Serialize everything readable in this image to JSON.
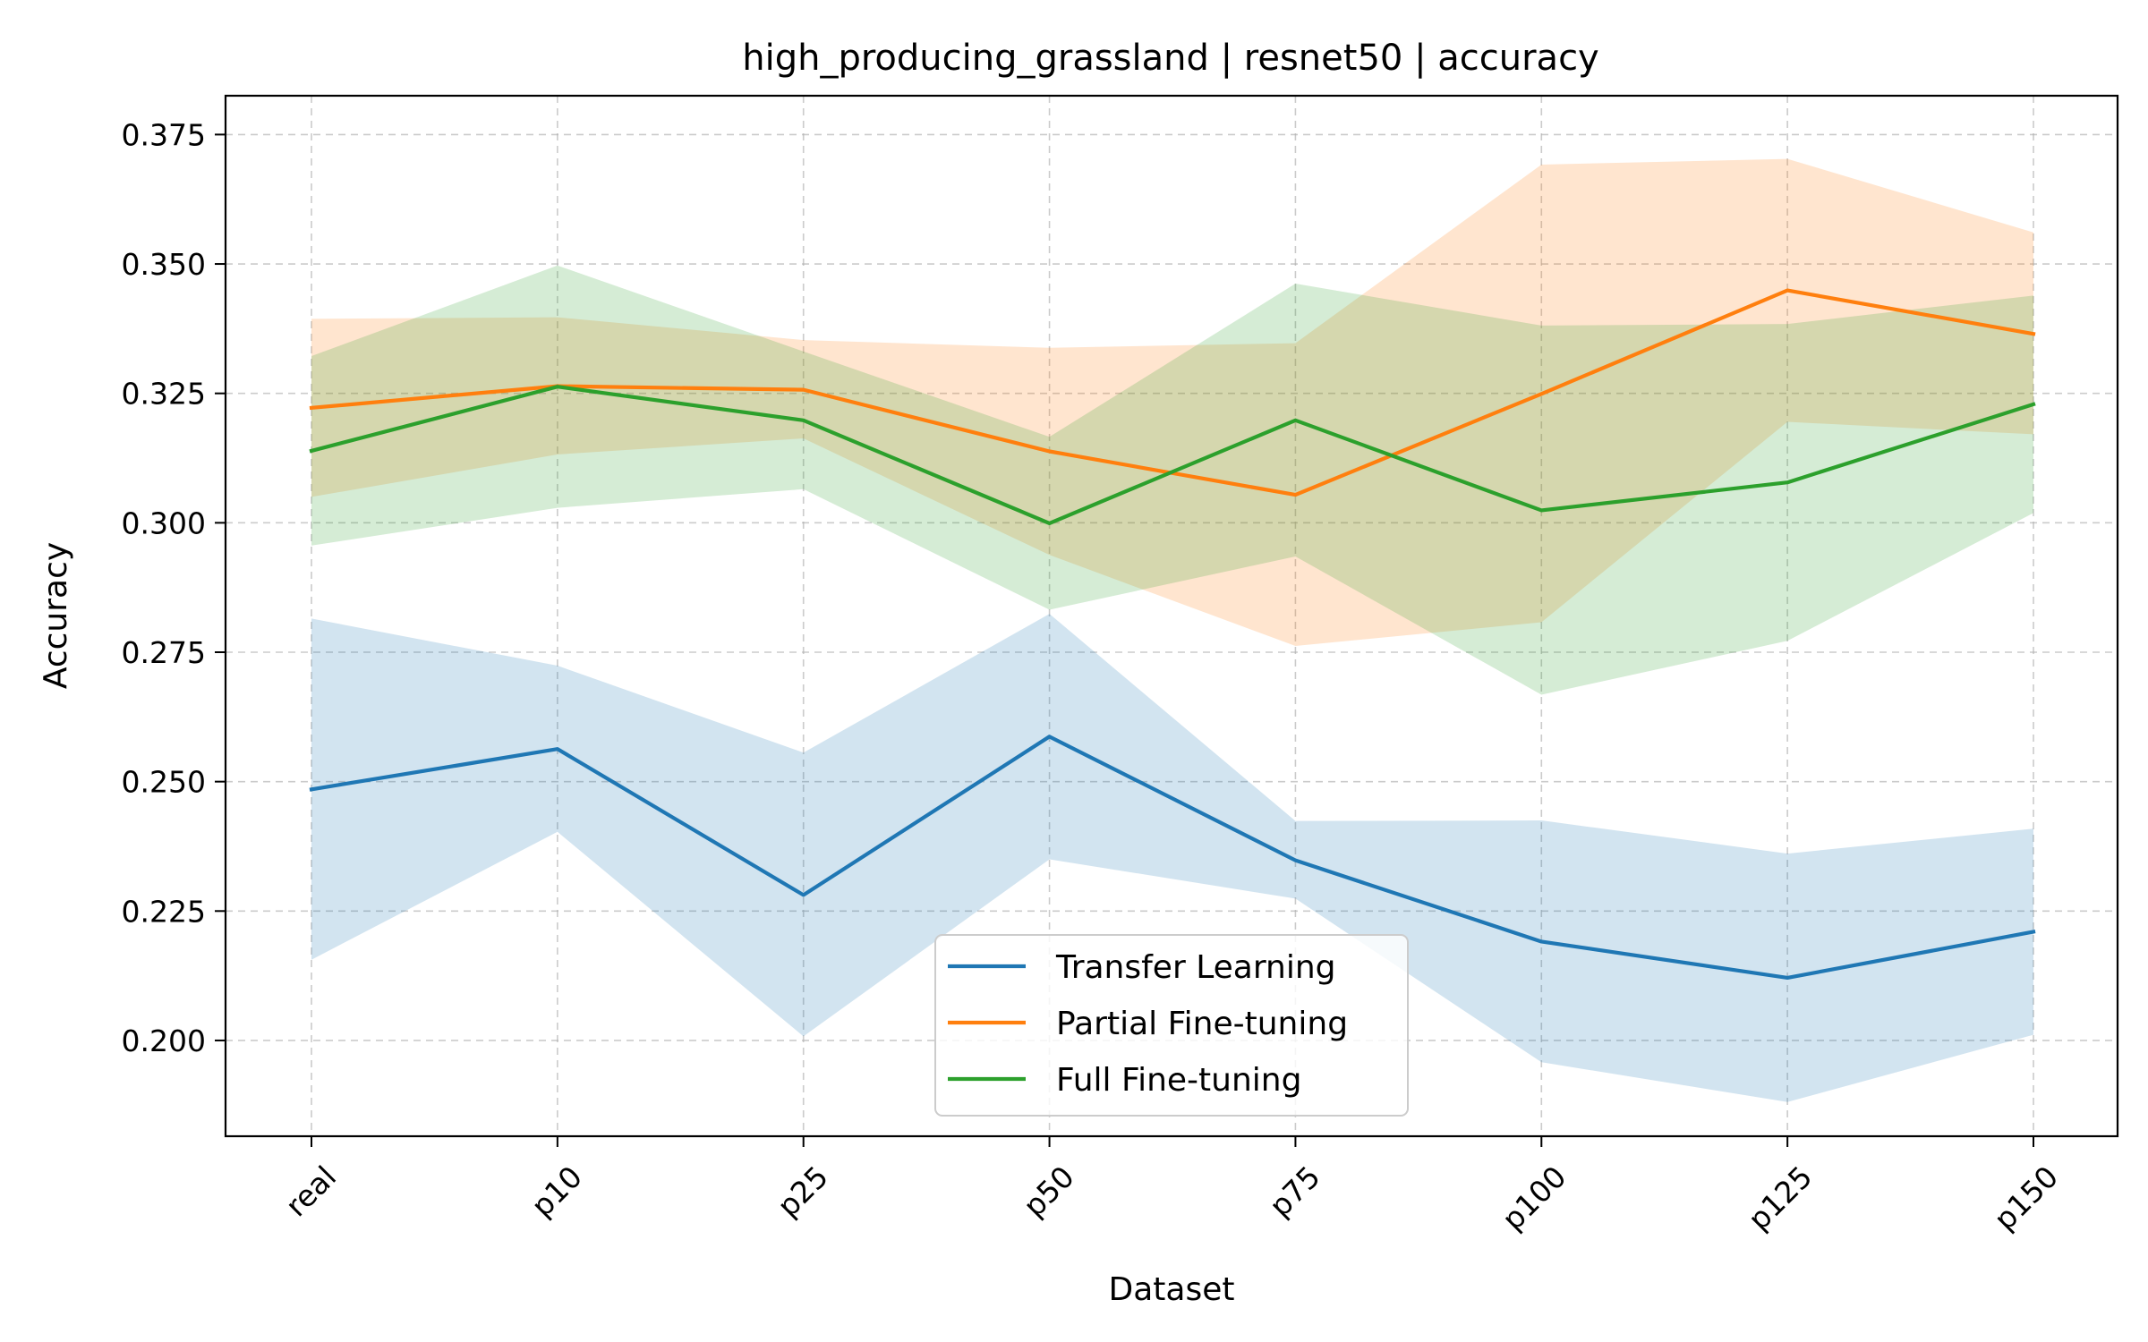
{
  "chart_data": {
    "type": "line",
    "title": "high_producing_grassland | resnet50 | accuracy",
    "xlabel": "Dataset",
    "ylabel": "Accuracy",
    "categories": [
      "real",
      "p10",
      "p25",
      "p50",
      "p75",
      "p100",
      "p125",
      "p150"
    ],
    "ylim": [
      0.1815,
      0.3825
    ],
    "yticks": [
      0.2,
      0.225,
      0.25,
      0.275,
      0.3,
      0.325,
      0.35,
      0.375
    ],
    "ytick_labels": [
      "0.200",
      "0.225",
      "0.250",
      "0.275",
      "0.300",
      "0.325",
      "0.350",
      "0.375"
    ],
    "grid": true,
    "legend_position": "lower-center",
    "series": [
      {
        "name": "Transfer Learning",
        "color": "#1f77b4",
        "values": [
          0.2485,
          0.2563,
          0.2281,
          0.2587,
          0.2348,
          0.2191,
          0.2121,
          0.221
        ],
        "lower": [
          0.2156,
          0.2403,
          0.2008,
          0.235,
          0.2274,
          0.1958,
          0.1881,
          0.2011
        ],
        "upper": [
          0.2815,
          0.2724,
          0.2556,
          0.2824,
          0.2424,
          0.2425,
          0.2361,
          0.2409
        ]
      },
      {
        "name": "Partial Fine-tuning",
        "color": "#ff7f0e",
        "values": [
          0.3222,
          0.3264,
          0.3257,
          0.3138,
          0.3054,
          0.3249,
          0.3449,
          0.3365
        ],
        "lower": [
          0.305,
          0.3132,
          0.3163,
          0.2938,
          0.2762,
          0.2808,
          0.3195,
          0.3171
        ],
        "upper": [
          0.3394,
          0.3397,
          0.3353,
          0.3338,
          0.3347,
          0.3692,
          0.3703,
          0.3561
        ]
      },
      {
        "name": "Full Fine-tuning",
        "color": "#2ca02c",
        "values": [
          0.3139,
          0.3263,
          0.3198,
          0.2999,
          0.3198,
          0.3024,
          0.3078,
          0.3229
        ],
        "lower": [
          0.2956,
          0.3029,
          0.3065,
          0.2832,
          0.2935,
          0.2668,
          0.2772,
          0.3019
        ],
        "upper": [
          0.3322,
          0.3497,
          0.3331,
          0.3166,
          0.3462,
          0.3381,
          0.3384,
          0.3439
        ]
      }
    ]
  }
}
